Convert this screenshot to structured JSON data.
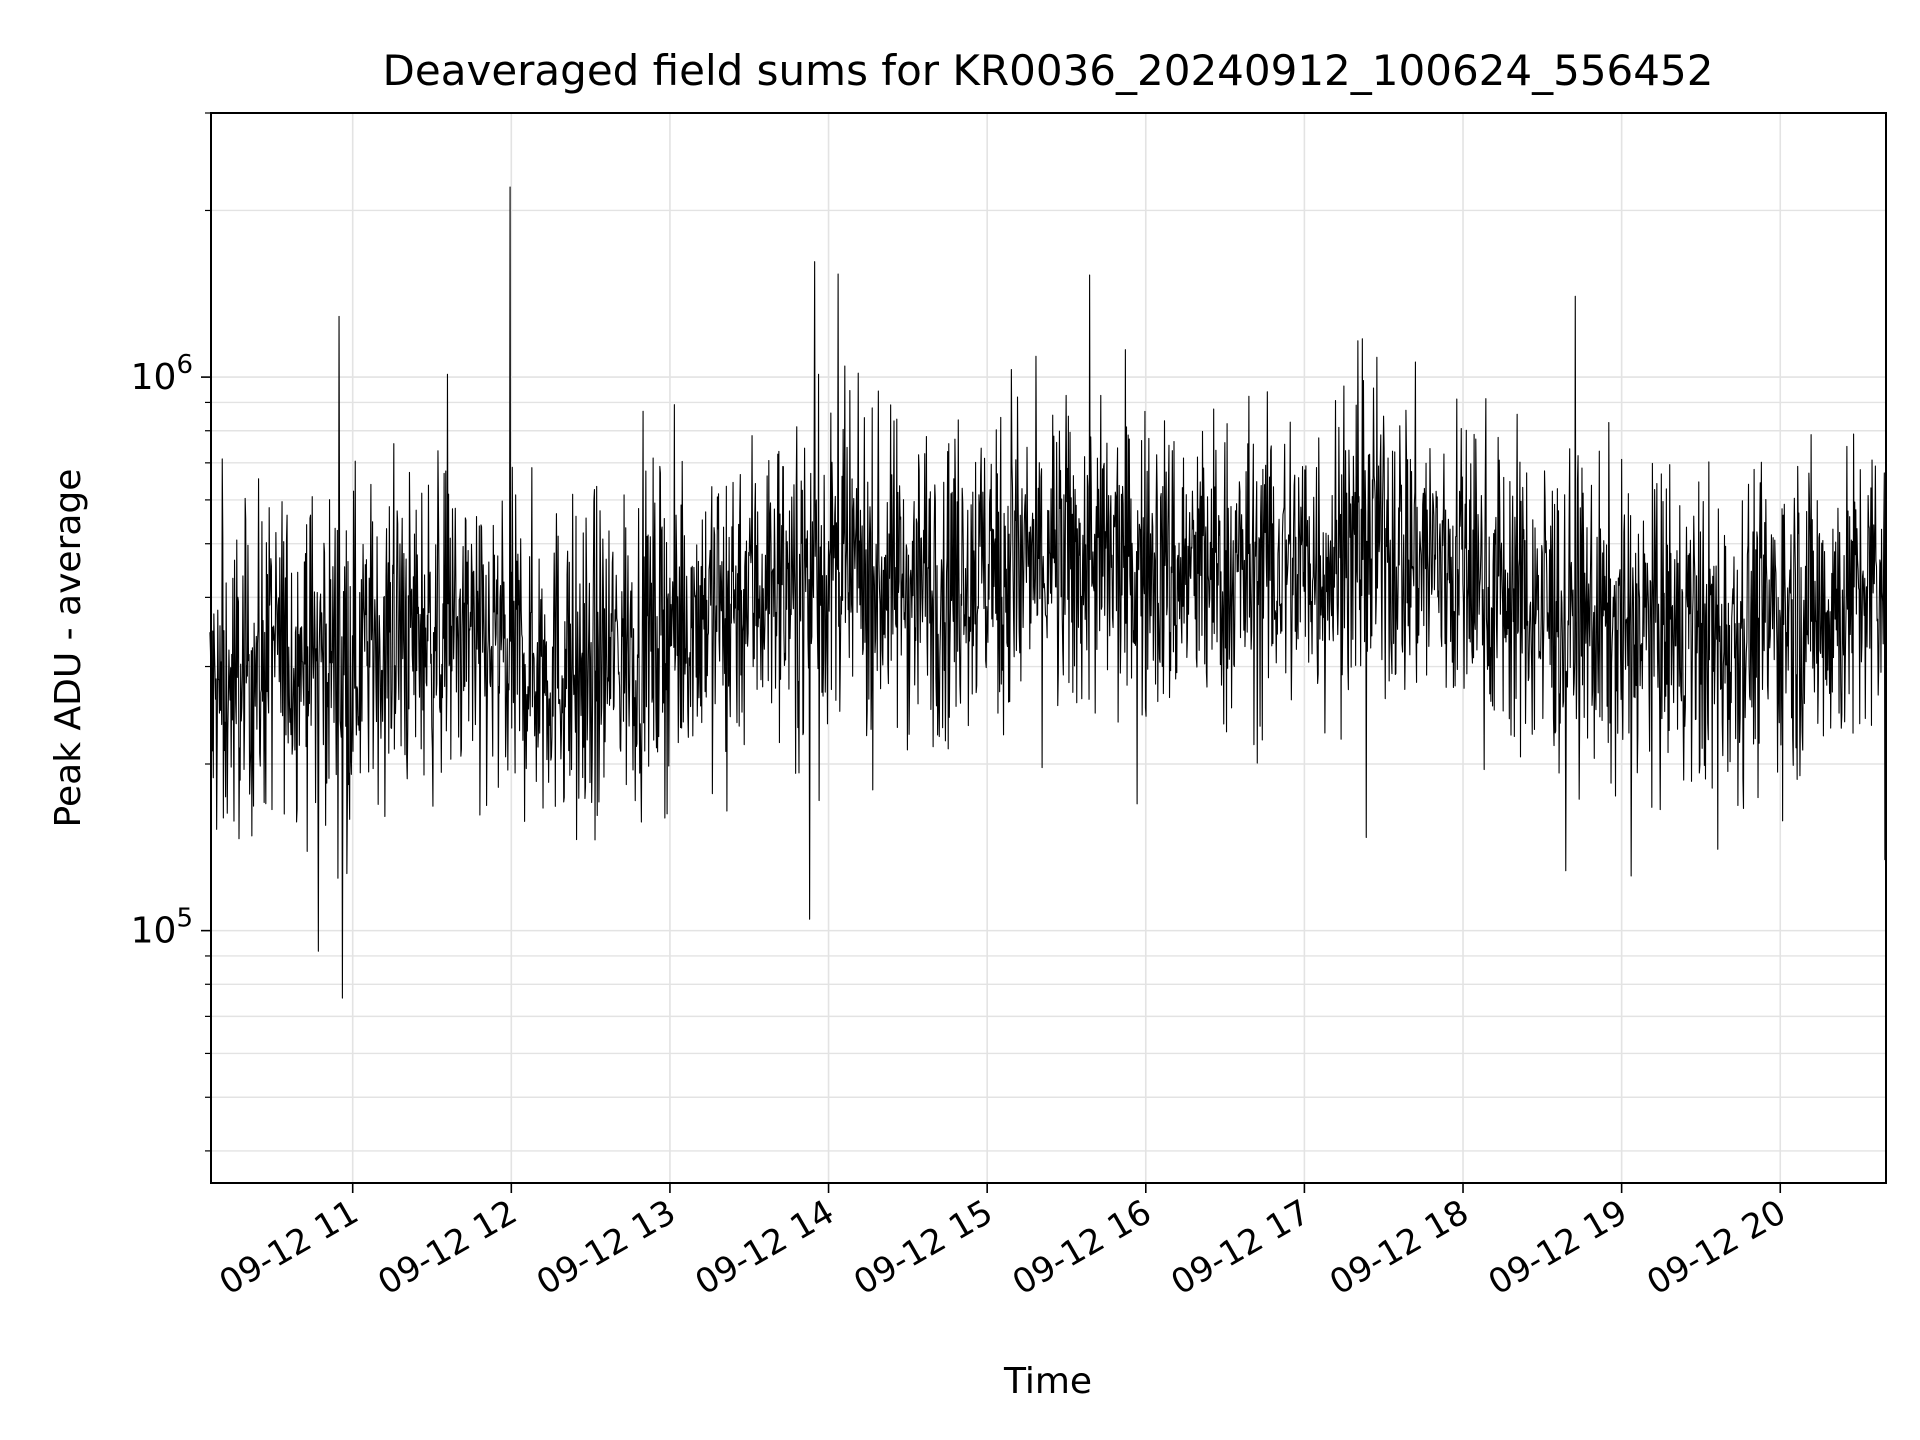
{
  "chart_data": {
    "type": "line",
    "title": "Deaveraged field sums for KR0036_20240912_100624_556452",
    "xlabel": "Time",
    "ylabel": "Peak ADU - average",
    "yscale": "log",
    "ylim": [
      35000,
      3000000
    ],
    "xlim": [
      "2024-09-12 10:06:24",
      "2024-09-12 20:40:00"
    ],
    "x_ticks": [
      {
        "value": "2024-09-12 11:00",
        "label": "09-12 11"
      },
      {
        "value": "2024-09-12 12:00",
        "label": "09-12 12"
      },
      {
        "value": "2024-09-12 13:00",
        "label": "09-12 13"
      },
      {
        "value": "2024-09-12 14:00",
        "label": "09-12 14"
      },
      {
        "value": "2024-09-12 15:00",
        "label": "09-12 15"
      },
      {
        "value": "2024-09-12 16:00",
        "label": "09-12 16"
      },
      {
        "value": "2024-09-12 17:00",
        "label": "09-12 17"
      },
      {
        "value": "2024-09-12 18:00",
        "label": "09-12 18"
      },
      {
        "value": "2024-09-12 19:00",
        "label": "09-12 19"
      },
      {
        "value": "2024-09-12 20:00",
        "label": "09-12 20"
      }
    ],
    "y_ticks": [
      {
        "value": 100000,
        "base": "10",
        "exp": "5"
      },
      {
        "value": 1000000,
        "base": "10",
        "exp": "6"
      }
    ],
    "grid": true,
    "line_color": "#000000",
    "series": [
      {
        "x": [
          "2024-09-12 10:06",
          "2024-09-12 10:30",
          "2024-09-12 11:00",
          "2024-09-12 11:30",
          "2024-09-12 12:00",
          "2024-09-12 12:30",
          "2024-09-12 13:00",
          "2024-09-12 13:30",
          "2024-09-12 14:00",
          "2024-09-12 14:30",
          "2024-09-12 15:00",
          "2024-09-12 15:30",
          "2024-09-12 16:00",
          "2024-09-12 16:30",
          "2024-09-12 17:00",
          "2024-09-12 17:30",
          "2024-09-12 18:00",
          "2024-09-12 18:30",
          "2024-09-12 19:00",
          "2024-09-12 19:30",
          "2024-09-12 20:00",
          "2024-09-12 20:40"
        ],
        "y": [
          250000,
          320000,
          320000,
          350000,
          310000,
          300000,
          360000,
          420000,
          440000,
          430000,
          450000,
          460000,
          450000,
          440000,
          460000,
          500000,
          450000,
          380000,
          350000,
          340000,
          370000,
          410000
        ]
      }
    ]
  }
}
